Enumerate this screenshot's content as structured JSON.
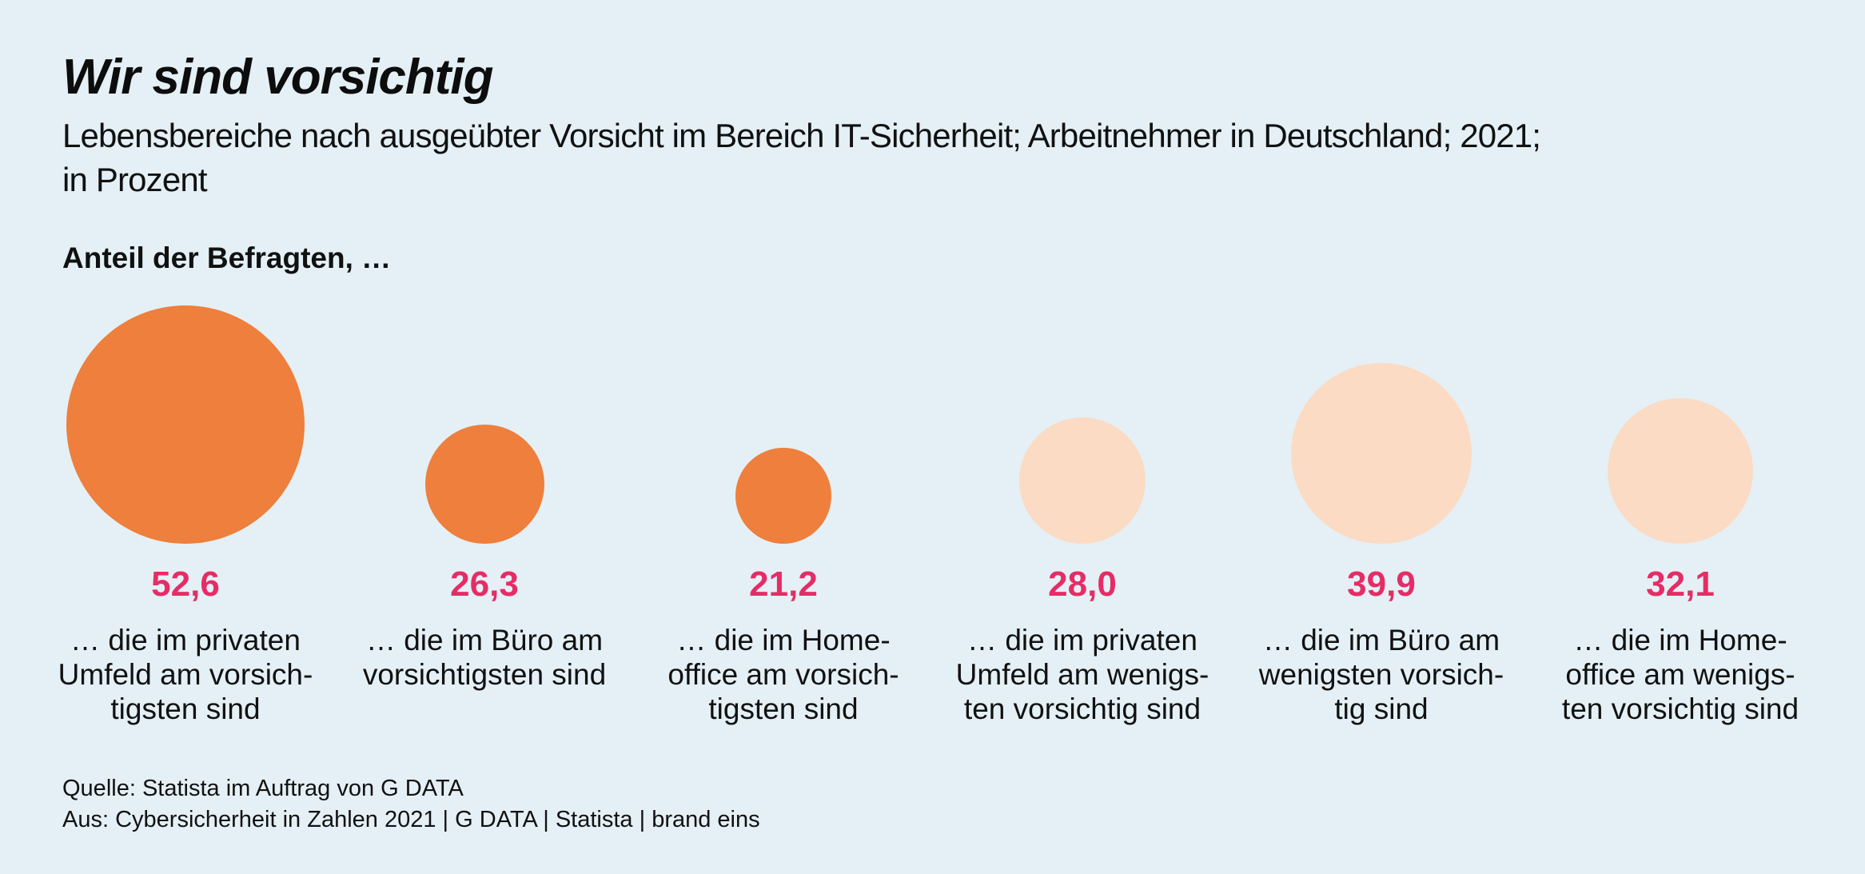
{
  "chart_data": {
    "type": "bubble",
    "title": "Wir sind vorsichtig",
    "subtitle": "Lebensbereiche nach ausgeübter Vorsicht im Bereich IT-Sicherheit; Arbeitnehmer in Deutschland; 2021;\nin Prozent",
    "lead_label": "Anteil der Befragten, …",
    "unit": "Prozent",
    "size_encoding": "circle diameter proportional to value",
    "colors": {
      "high_caution_circle": "#ee7f3d",
      "low_caution_circle": "#fbdbc4",
      "value_text": "#e62c66",
      "background": "#e4f0f5",
      "text": "#111111"
    },
    "categories": [
      "… die im privaten Umfeld am vorsichtigsten sind",
      "… die im Büro am vorsichtigsten sind",
      "… die im Homeoffice am vorsichtigsten sind",
      "… die im privaten Umfeld am wenigsten vorsichtig sind",
      "… die im Büro am wenigsten vorsichtig sind",
      "… die im Homeoffice am wenigsten vorsichtig sind"
    ],
    "values": [
      52.6,
      26.3,
      21.2,
      28.0,
      39.9,
      32.1
    ],
    "items": [
      {
        "value": 52.6,
        "display_value": "52,6",
        "caption": "… die im privaten\nUmfeld am vorsich-\ntigsten sind",
        "color_key": "high_caution_circle"
      },
      {
        "value": 26.3,
        "display_value": "26,3",
        "caption": "… die im Büro am\nvorsichtigsten sind",
        "color_key": "high_caution_circle"
      },
      {
        "value": 21.2,
        "display_value": "21,2",
        "caption": "… die im Home-\noffice am vorsich-\ntigsten sind",
        "color_key": "high_caution_circle"
      },
      {
        "value": 28.0,
        "display_value": "28,0",
        "caption": "… die im privaten\nUmfeld am wenigs-\nten vorsichtig sind",
        "color_key": "low_caution_circle"
      },
      {
        "value": 39.9,
        "display_value": "39,9",
        "caption": "… die im Büro am\nwenigsten vorsich-\ntig sind",
        "color_key": "low_caution_circle"
      },
      {
        "value": 32.1,
        "display_value": "32,1",
        "caption": "… die im Home-\noffice am wenigs-\nten vorsichtig sind",
        "color_key": "low_caution_circle"
      }
    ]
  },
  "footer": {
    "source": "Quelle: Statista im Auftrag von G DATA",
    "attribution": "Aus: Cybersicherheit in Zahlen 2021 | G DATA | Statista | brand eins"
  }
}
